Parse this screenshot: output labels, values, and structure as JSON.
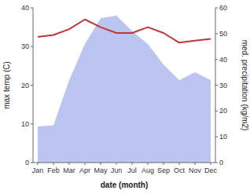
{
  "chart_data": {
    "type": "line",
    "x_label": "date (month)",
    "y_label": "max temp (C)",
    "y2_label": "med. precipitation (kg/m2)",
    "categories": [
      "Jan",
      "Feb",
      "Mar",
      "Apr",
      "May",
      "Jun",
      "Jul",
      "Aug",
      "Sep",
      "Oct",
      "Nov",
      "Dec"
    ],
    "series": [
      {
        "type": "area",
        "axis": "y2",
        "color": "#bcc5f0",
        "values": [
          14.0,
          14.5,
          32.0,
          46.0,
          56.0,
          57.0,
          51.0,
          46.0,
          38.0,
          32.0,
          35.0,
          32.0
        ]
      },
      {
        "type": "line",
        "color": "#c03535",
        "values": [
          32.5,
          33.0,
          34.5,
          37.0,
          35.0,
          33.5,
          33.5,
          35.0,
          33.5,
          31.0,
          31.5,
          32.0
        ]
      }
    ],
    "ylim": [
      0,
      40
    ],
    "yticks": [
      0,
      10,
      20,
      30,
      40
    ],
    "y2lim": [
      0,
      60
    ],
    "y2ticks": [
      0,
      10,
      20,
      30,
      40,
      50,
      60
    ],
    "grid": false
  }
}
